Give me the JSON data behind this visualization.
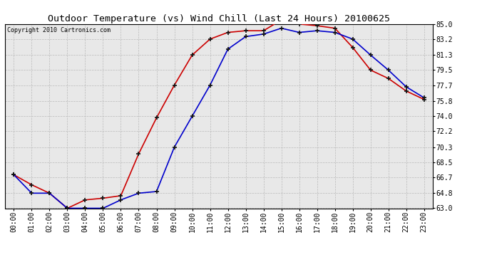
{
  "title": "Outdoor Temperature (vs) Wind Chill (Last 24 Hours) 20100625",
  "copyright": "Copyright 2010 Cartronics.com",
  "x_labels": [
    "00:00",
    "01:00",
    "02:00",
    "03:00",
    "04:00",
    "05:00",
    "06:00",
    "07:00",
    "08:00",
    "09:00",
    "10:00",
    "11:00",
    "12:00",
    "13:00",
    "14:00",
    "15:00",
    "16:00",
    "17:00",
    "18:00",
    "19:00",
    "20:00",
    "21:00",
    "22:00",
    "23:00"
  ],
  "temp_red": [
    67.0,
    65.8,
    64.8,
    63.0,
    64.0,
    64.2,
    64.5,
    69.5,
    73.8,
    77.7,
    81.3,
    83.2,
    84.0,
    84.2,
    84.2,
    85.5,
    85.0,
    84.8,
    84.5,
    82.2,
    79.5,
    78.5,
    77.0,
    76.0
  ],
  "wind_chill_blue": [
    67.0,
    64.8,
    64.8,
    63.0,
    63.0,
    63.0,
    64.0,
    64.8,
    65.0,
    70.3,
    74.0,
    77.7,
    82.0,
    83.5,
    83.8,
    84.5,
    84.0,
    84.2,
    84.0,
    83.2,
    81.3,
    79.5,
    77.5,
    76.2
  ],
  "ylim": [
    63.0,
    85.0
  ],
  "yticks": [
    63.0,
    64.8,
    66.7,
    68.5,
    70.3,
    72.2,
    74.0,
    75.8,
    77.7,
    79.5,
    81.3,
    83.2,
    85.0
  ],
  "red_color": "#cc0000",
  "blue_color": "#0000cc",
  "bg_color": "#ffffff",
  "plot_bg": "#e8e8e8",
  "grid_color": "#bbbbbb",
  "title_fontsize": 9.5,
  "copyright_fontsize": 6,
  "tick_fontsize": 7,
  "marker_color": "#111111"
}
